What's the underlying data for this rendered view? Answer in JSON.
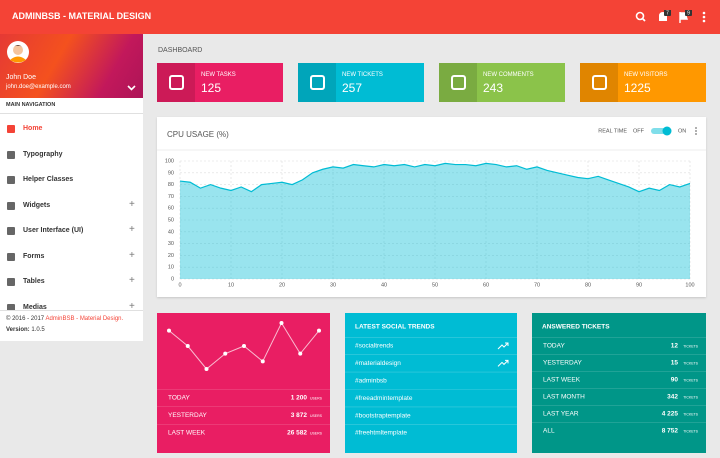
{
  "header": {
    "title": "ADMINBSB - MATERIAL DESIGN",
    "notifications_badge": "7",
    "tasks_badge": "9"
  },
  "sidebar": {
    "user_name": "John Doe",
    "user_email": "john.doe@example.com",
    "section": "MAIN NAVIGATION",
    "menu": [
      {
        "label": "Home",
        "active": true,
        "expandable": false
      },
      {
        "label": "Typography",
        "active": false,
        "expandable": false
      },
      {
        "label": "Helper Classes",
        "active": false,
        "expandable": false
      },
      {
        "label": "Widgets",
        "active": false,
        "expandable": true
      },
      {
        "label": "User Interface (UI)",
        "active": false,
        "expandable": true
      },
      {
        "label": "Forms",
        "active": false,
        "expandable": true
      },
      {
        "label": "Tables",
        "active": false,
        "expandable": true
      },
      {
        "label": "Medias",
        "active": false,
        "expandable": true
      }
    ],
    "copyright": "© 2016 - 2017",
    "brand": "AdminBSB - Material Design.",
    "version_label": "Version:",
    "version": "1.0.5"
  },
  "breadcrumb": "DASHBOARD",
  "info_boxes": [
    {
      "title": "NEW TASKS",
      "value": 125,
      "color": "#e91e63"
    },
    {
      "title": "NEW TICKETS",
      "value": 257,
      "color": "#00bcd4"
    },
    {
      "title": "NEW COMMENTS",
      "value": 243,
      "color": "#8bc34a"
    },
    {
      "title": "NEW VISITORS",
      "value": 1225,
      "color": "#ff9800"
    }
  ],
  "chart_data": {
    "type": "area",
    "title": "CPU USAGE (%)",
    "realtime_label": "REAL TIME",
    "off_label": "OFF",
    "on_label": "ON",
    "color": "#00bcd4",
    "grid": true,
    "x": [
      0,
      2,
      4,
      6,
      8,
      10,
      12,
      14,
      16,
      18,
      20,
      22,
      24,
      26,
      28,
      30,
      32,
      34,
      36,
      38,
      40,
      42,
      44,
      46,
      48,
      50,
      52,
      54,
      56,
      58,
      60,
      62,
      64,
      66,
      68,
      70,
      72,
      74,
      76,
      78,
      80,
      82,
      84,
      86,
      88,
      90,
      92,
      94,
      96,
      98,
      100
    ],
    "values": [
      83,
      82,
      77,
      80,
      77,
      75,
      78,
      74,
      80,
      81,
      82,
      80,
      84,
      90,
      93,
      95,
      94,
      97,
      96,
      95,
      97,
      96,
      97,
      95,
      97,
      96,
      98,
      97,
      97,
      96,
      98,
      97,
      95,
      96,
      93,
      95,
      92,
      90,
      88,
      86,
      85,
      87,
      84,
      81,
      78,
      74,
      77,
      75,
      80,
      78,
      81
    ],
    "xlim": [
      0,
      100
    ],
    "ylim": [
      0,
      100
    ],
    "xticks": [
      0,
      10,
      20,
      30,
      40,
      50,
      60,
      70,
      80,
      90,
      100
    ],
    "yticks": [
      0,
      10,
      20,
      30,
      40,
      50,
      60,
      70,
      80,
      90,
      100
    ]
  },
  "visitors_card": {
    "sparkline": [
      8,
      6,
      3,
      5,
      6,
      4,
      9,
      5,
      8
    ],
    "rows": [
      {
        "label": "TODAY",
        "value": "1 200",
        "unit": "USERS"
      },
      {
        "label": "YESTERDAY",
        "value": "3 872",
        "unit": "USERS"
      },
      {
        "label": "LAST WEEK",
        "value": "26 582",
        "unit": "USERS"
      }
    ]
  },
  "social_card": {
    "title": "LATEST SOCIAL TRENDS",
    "items": [
      {
        "tag": "#socialtrends",
        "trending": true
      },
      {
        "tag": "#materialdesign",
        "trending": true
      },
      {
        "tag": "#adminbsb",
        "trending": false
      },
      {
        "tag": "#freeadmintemplate",
        "trending": false
      },
      {
        "tag": "#bootstraptemplate",
        "trending": false
      },
      {
        "tag": "#freehtmltemplate",
        "trending": false
      }
    ]
  },
  "tickets_card": {
    "title": "ANSWERED TICKETS",
    "rows": [
      {
        "label": "TODAY",
        "value": "12",
        "unit": "TICKETS"
      },
      {
        "label": "YESTERDAY",
        "value": "15",
        "unit": "TICKETS"
      },
      {
        "label": "LAST WEEK",
        "value": "90",
        "unit": "TICKETS"
      },
      {
        "label": "LAST MONTH",
        "value": "342",
        "unit": "TICKETS"
      },
      {
        "label": "LAST YEAR",
        "value": "4 225",
        "unit": "TICKETS"
      },
      {
        "label": "ALL",
        "value": "8 752",
        "unit": "TICKETS"
      }
    ]
  }
}
